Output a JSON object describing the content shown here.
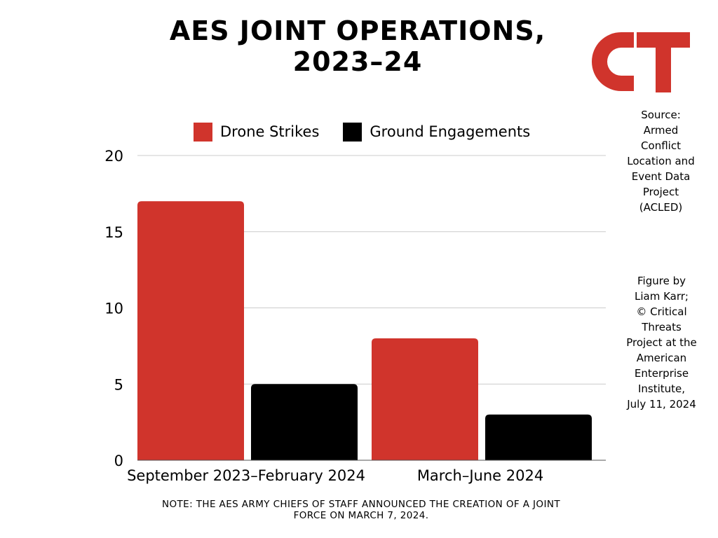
{
  "title_lines": [
    "AES JOINT OPERATIONS,",
    "2023–24"
  ],
  "logo": {
    "text": "CT",
    "color": "#d0342c"
  },
  "source_lines": [
    "Source:",
    "Armed",
    "Conflict",
    "Location and",
    "Event Data",
    "Project",
    "(ACLED)"
  ],
  "credit_lines": [
    "Figure by",
    "Liam Karr;",
    "© Critical",
    "Threats",
    "Project at the",
    "American",
    "Enterprise",
    "Institute,",
    "July 11, 2024"
  ],
  "note_lines": [
    "NOTE: THE AES ARMY CHIEFS OF STAFF ANNOUNCED THE CREATION OF A JOINT",
    "FORCE ON MARCH 7, 2024."
  ],
  "colors": {
    "drone": "#d0342c",
    "ground": "#000000",
    "grid": "#cccccc"
  },
  "chart_data": {
    "type": "bar",
    "categories": [
      "September 2023–February 2024",
      "March–June 2024"
    ],
    "series": [
      {
        "name": "Drone Strikes",
        "values": [
          17,
          8
        ],
        "color": "#d0342c"
      },
      {
        "name": "Ground Engagements",
        "values": [
          5,
          3
        ],
        "color": "#000000"
      }
    ],
    "ylim": [
      0,
      20
    ],
    "yticks": [
      0,
      5,
      10,
      15,
      20
    ],
    "grid": true,
    "legend_position": "top"
  }
}
